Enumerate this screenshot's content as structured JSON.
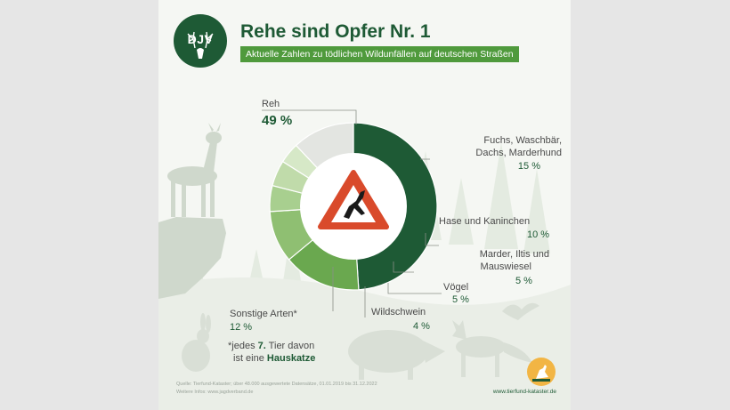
{
  "header": {
    "logo_text": "DJV",
    "title": "Rehe sind Opfer Nr. 1",
    "subtitle": "Aktuelle Zahlen zu tödlichen Wildunfällen auf deutschen Straßen"
  },
  "chart_data": {
    "type": "pie",
    "title": "Rehe sind Opfer Nr. 1",
    "subtitle": "Aktuelle Zahlen zu tödlichen Wildunfällen auf deutschen Straßen",
    "unit": "%",
    "slices": [
      {
        "label": "Reh",
        "value": 49,
        "display": "49 %",
        "color": "#1e5a35"
      },
      {
        "label": "Fuchs, Waschbär, Dachs, Marderhund",
        "value": 15,
        "display": "15 %",
        "color": "#6aa84f"
      },
      {
        "label": "Hase und Kaninchen",
        "value": 10,
        "display": "10 %",
        "color": "#8fbf72"
      },
      {
        "label": "Marder, Iltis und Mauswiesel",
        "value": 5,
        "display": "5 %",
        "color": "#a8cf8f"
      },
      {
        "label": "Vögel",
        "value": 5,
        "display": "5 %",
        "color": "#c0dbaa"
      },
      {
        "label": "Wildschwein",
        "value": 4,
        "display": "4 %",
        "color": "#d6e8c7"
      },
      {
        "label": "Sonstige Arten*",
        "value": 12,
        "display": "12 %",
        "color": "#e3e5e1"
      }
    ]
  },
  "labels": {
    "reh": "Reh",
    "reh_pct": "49 %",
    "fuchs_l1": "Fuchs, Waschbär,",
    "fuchs_l2": "Dachs, Marderhund",
    "fuchs_pct": "15 %",
    "hase": "Hase und Kaninchen",
    "hase_pct": "10 %",
    "marder_l1": "Marder, Iltis und",
    "marder_l2": "Mauswiesel",
    "marder_pct": "5 %",
    "voegel": "Vögel",
    "voegel_pct": "5 %",
    "wildschwein": "Wildschwein",
    "wildschwein_pct": "4 %",
    "sonstige": "Sonstige Arten*",
    "sonstige_pct": "12 %"
  },
  "footnote": {
    "l1_a": "*jedes ",
    "l1_b": "7.",
    "l1_c": " Tier davon",
    "l2_a": "ist eine ",
    "l2_b": "Hauskatze"
  },
  "footer": {
    "source_l1": "Quelle: Tierfund-Kataster; über 48.000 ausgewertete Datensätze, 01.01.2019 bis 31.12.2022",
    "source_l2": "Weitere Infos: www.jagdverband.de",
    "website": "www.tierfund-kataster.de"
  },
  "colors": {
    "brand_green": "#1e5a35",
    "accent_green": "#4f9a3c",
    "warning_red": "#d94a2b",
    "badge_orange": "#f2b544"
  },
  "icons": [
    "djv-deer-logo-icon",
    "deer-warning-sign-icon",
    "tierfund-badge-icon"
  ]
}
